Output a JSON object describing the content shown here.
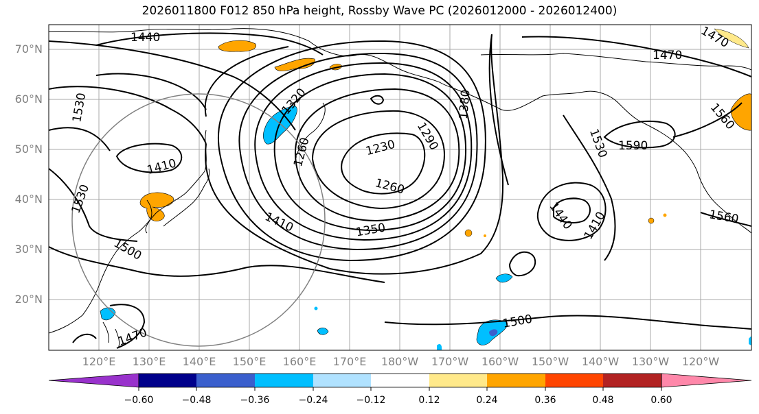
{
  "title": "2026011800 F012 850 hPa height, Rossby Wave PC (2026012000 - 2026012400)",
  "map": {
    "projection": "equirectangular",
    "lon_range": [
      110,
      250
    ],
    "lat_range": [
      10,
      75
    ],
    "lat_labels": [
      "20°N",
      "30°N",
      "40°N",
      "50°N",
      "60°N",
      "70°N"
    ],
    "lon_labels": [
      "120°E",
      "130°E",
      "140°E",
      "150°E",
      "160°E",
      "170°E",
      "180°W",
      "170°W",
      "160°W",
      "150°W",
      "140°W",
      "130°W",
      "120°W"
    ],
    "contour_labels": [
      "1440",
      "1470",
      "1530",
      "1320",
      "1380",
      "1290",
      "1230",
      "1260",
      "1260",
      "1410",
      "1530",
      "1500",
      "1350",
      "1410",
      "1440",
      "1410",
      "1530",
      "1590",
      "1560",
      "1500",
      "1560",
      "1470",
      "1470"
    ],
    "shading_colors": {
      "positive": "#ffa500",
      "positive_light": "#ffe98a",
      "negative": "#00bfff",
      "negative_dark": "#3a5fcd"
    }
  },
  "colorbar": {
    "colors": [
      "#9932cc",
      "#00008b",
      "#3a5fcd",
      "#00bfff",
      "#b0e2ff",
      "#ffffff",
      "#ffe98a",
      "#ffa500",
      "#ff4500",
      "#b22222",
      "#ff88aa"
    ],
    "tick_labels": [
      "−0.60",
      "−0.48",
      "−0.36",
      "−0.24",
      "−0.12",
      "0.12",
      "0.24",
      "0.36",
      "0.48",
      "0.60"
    ]
  }
}
